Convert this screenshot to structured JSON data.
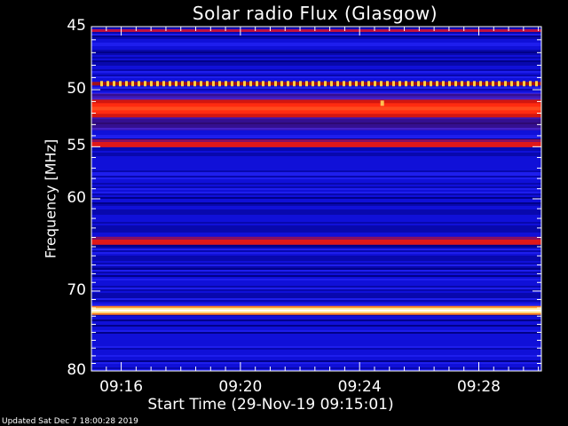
{
  "chart_data": {
    "type": "heatmap",
    "title": "Solar radio Flux (Glasgow)",
    "xlabel": "Start Time (29-Nov-19 09:15:01)",
    "ylabel": "Frequency [MHz]",
    "x_ticks": [
      "09:16",
      "09:20",
      "09:24",
      "09:28"
    ],
    "x_tick_minutes": [
      16,
      20,
      24,
      28
    ],
    "xlim_minutes": [
      15.0,
      30.1
    ],
    "y_ticks": [
      45,
      50,
      55,
      60,
      70,
      80
    ],
    "ylim_mhz": [
      80,
      45
    ],
    "y_scale": "log",
    "background_color": "#1010d8",
    "emission_bands": [
      {
        "freq_mhz": 49.5,
        "level": "dashed-yellow"
      },
      {
        "freq_mhz": 51.6,
        "level": "strong-red"
      },
      {
        "freq_mhz": 54.8,
        "level": "red"
      },
      {
        "freq_mhz": 64.5,
        "level": "red"
      },
      {
        "freq_mhz": 72.3,
        "level": "saturated-yellow"
      }
    ]
  },
  "footer": "Updated Sat Dec  7 18:00:28 2019"
}
